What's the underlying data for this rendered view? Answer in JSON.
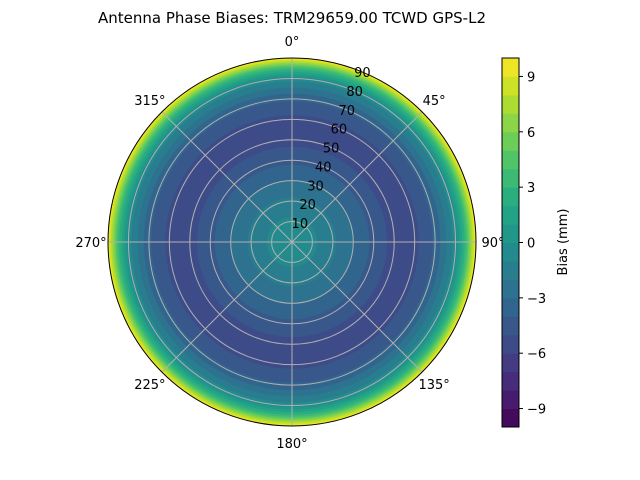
{
  "chart_data": {
    "type": "heatmap",
    "projection": "polar",
    "title": "Antenna Phase Biases: TRM29659.00     TCWD GPS-L2",
    "colormap": "viridis",
    "colorbar": {
      "label": "Bias (mm)",
      "range": [
        -10,
        10
      ],
      "level_step": 1,
      "ticks": [
        "−9",
        "−6",
        "−3",
        "0",
        "3",
        "6",
        "9"
      ],
      "tick_values": [
        -9,
        -6,
        -3,
        0,
        3,
        6,
        9
      ]
    },
    "angular_axis": {
      "zero_location": "top",
      "direction": "clockwise",
      "tick_labels": [
        "0°",
        "45°",
        "90°",
        "135°",
        "180°",
        "225°",
        "270°",
        "315°"
      ],
      "tick_values": [
        0,
        45,
        90,
        135,
        180,
        225,
        270,
        315
      ]
    },
    "radial_axis": {
      "range": [
        0,
        90
      ],
      "tick_labels": [
        "10",
        "20",
        "30",
        "40",
        "50",
        "60",
        "70",
        "80",
        "90"
      ],
      "tick_values": [
        10,
        20,
        30,
        40,
        50,
        60,
        70,
        80,
        90
      ]
    },
    "grid": true,
    "azimuth_dependence": "none",
    "profile": {
      "zenith_deg": [
        0,
        10,
        20,
        30,
        40,
        50,
        55,
        60,
        70,
        80,
        85,
        90
      ],
      "bias_mm": [
        -0.5,
        -0.8,
        -1.8,
        -3.0,
        -4.3,
        -5.4,
        -5.6,
        -5.3,
        -3.8,
        -0.5,
        3.5,
        10
      ]
    }
  }
}
